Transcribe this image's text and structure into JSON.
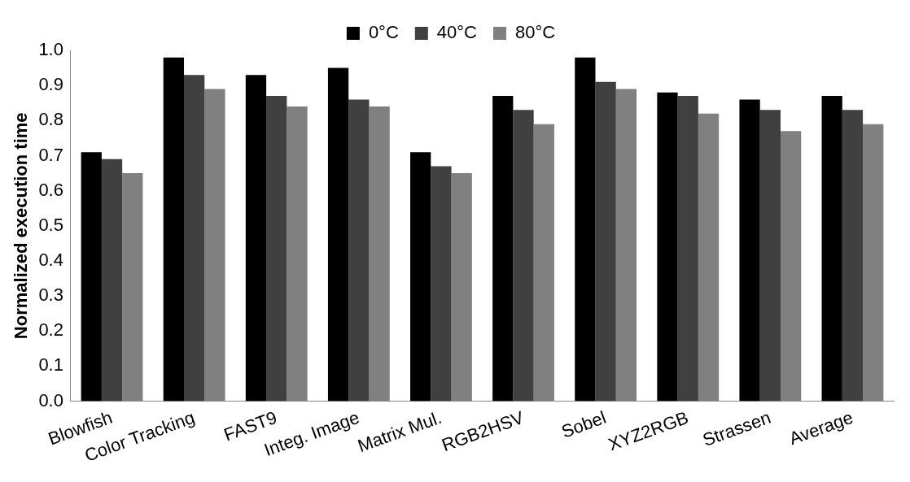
{
  "chart_data": {
    "type": "bar",
    "ylabel": "Normalized execution time",
    "categories": [
      "Blowfish",
      "Color Tracking",
      "FAST9",
      "Integ. Image",
      "Matrix Mul.",
      "RGB2HSV",
      "Sobel",
      "XYZ2RGB",
      "Strassen",
      "Average"
    ],
    "series": [
      {
        "name": "0°C",
        "color": "#000000",
        "values": [
          0.71,
          0.98,
          0.93,
          0.95,
          0.71,
          0.87,
          0.98,
          0.88,
          0.86,
          0.87
        ]
      },
      {
        "name": "40°C",
        "color": "#404040",
        "values": [
          0.69,
          0.93,
          0.87,
          0.86,
          0.67,
          0.83,
          0.91,
          0.87,
          0.83,
          0.83
        ]
      },
      {
        "name": "80°C",
        "color": "#808080",
        "values": [
          0.65,
          0.89,
          0.84,
          0.84,
          0.65,
          0.79,
          0.89,
          0.82,
          0.77,
          0.79
        ]
      }
    ],
    "ylim": [
      0,
      1
    ],
    "yticks": [
      {
        "value": 0,
        "label": "0.0"
      },
      {
        "value": 0.1,
        "label": "0.1"
      },
      {
        "value": 0.2,
        "label": "0.2"
      },
      {
        "value": 0.3,
        "label": "0.3"
      },
      {
        "value": 0.4,
        "label": "0.4"
      },
      {
        "value": 0.5,
        "label": "0.5"
      },
      {
        "value": 0.6,
        "label": "0.6"
      },
      {
        "value": 0.7,
        "label": "0.7"
      },
      {
        "value": 0.8,
        "label": "0.8"
      },
      {
        "value": 0.9,
        "label": "0.9"
      },
      {
        "value": 1,
        "label": "1.0"
      }
    ],
    "grid": false,
    "legend": "top"
  }
}
